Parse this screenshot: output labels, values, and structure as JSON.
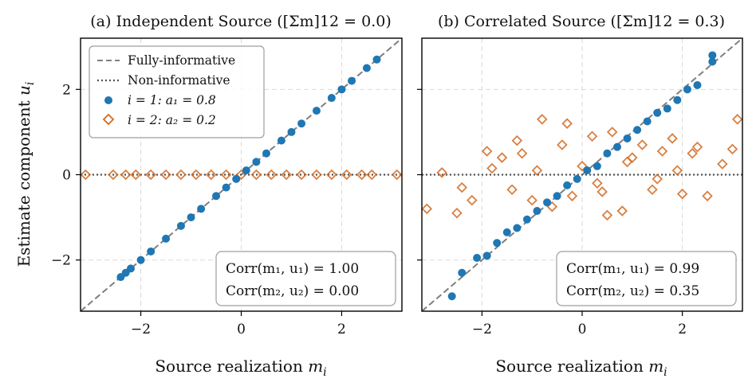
{
  "colors": {
    "blue": "#1f77b4",
    "orange": "#d2691e",
    "ref_line": "#7f7f7f",
    "dotted_line": "#555555",
    "grid": "#d9d9d9"
  },
  "shared": {
    "ylabel": "Estimate component u_i",
    "ylabel_main": "Estimate component ",
    "ylabel_sub": "i",
    "ylabel_var": "u",
    "xlabel_main": "Source realization ",
    "xlabel_var": "m",
    "xlabel_sub": "i",
    "yticks": [
      "2",
      "0",
      "−2"
    ]
  },
  "legend": {
    "items": [
      {
        "label": "Fully-informative",
        "marker": "dashed-line"
      },
      {
        "label": "Non-informative",
        "marker": "dotted-line"
      },
      {
        "label": "i = 1:  a₁ = 0.8",
        "marker": "blue-dot"
      },
      {
        "label": "i = 2:  a₂ = 0.2",
        "marker": "orange-diamond"
      }
    ]
  },
  "chart_data": [
    {
      "type": "scatter",
      "title": "(a) Independent Source ([Σm]12 = 0.0)",
      "xlabel": "Source realization m_i",
      "ylabel": "Estimate component u_i",
      "xlim": [
        -3.2,
        3.2
      ],
      "ylim": [
        -3.2,
        3.2
      ],
      "xticks": [
        -2,
        0,
        2
      ],
      "yticks": [
        -2,
        0,
        2
      ],
      "grid": true,
      "reference_lines": [
        {
          "name": "Fully-informative",
          "style": "dashed",
          "slope": 1,
          "intercept": 0
        },
        {
          "name": "Non-informative",
          "style": "dotted",
          "slope": 0,
          "intercept": 0
        }
      ],
      "series": [
        {
          "name": "i = 1: a1 = 0.8",
          "marker": "circle",
          "x": [
            -2.4,
            -2.3,
            -2.2,
            -2.0,
            -1.8,
            -1.5,
            -1.2,
            -1.0,
            -0.8,
            -0.5,
            -0.3,
            -0.1,
            0.1,
            0.3,
            0.5,
            0.8,
            1.0,
            1.2,
            1.5,
            1.8,
            2.0,
            2.2,
            2.5,
            2.7
          ],
          "y": [
            -2.4,
            -2.3,
            -2.2,
            -2.0,
            -1.8,
            -1.5,
            -1.2,
            -1.0,
            -0.8,
            -0.5,
            -0.3,
            -0.1,
            0.1,
            0.3,
            0.5,
            0.8,
            1.0,
            1.2,
            1.5,
            1.8,
            2.0,
            2.2,
            2.5,
            2.7
          ]
        },
        {
          "name": "i = 2: a2 = 0.2",
          "marker": "diamond-open",
          "x": [
            -3.1,
            -2.55,
            -2.3,
            -2.1,
            -1.8,
            -1.5,
            -1.2,
            -0.9,
            -0.6,
            -0.3,
            0.0,
            0.3,
            0.6,
            0.9,
            1.2,
            1.5,
            1.8,
            2.1,
            2.4,
            2.6,
            3.1
          ],
          "y": [
            0,
            0,
            0,
            0,
            0,
            0,
            0,
            0,
            0,
            0,
            0,
            0,
            0,
            0,
            0,
            0,
            0,
            0,
            0,
            0,
            0
          ]
        }
      ],
      "annotation": [
        "Corr(m₁, u₁) = 1.00",
        "Corr(m₂, u₂) = 0.00"
      ]
    },
    {
      "type": "scatter",
      "title": "(b) Correlated Source ([Σm]12 = 0.3)",
      "xlabel": "Source realization m_i",
      "xlim": [
        -3.2,
        3.2
      ],
      "ylim": [
        -3.2,
        3.2
      ],
      "xticks": [
        -2,
        0,
        2
      ],
      "grid": true,
      "reference_lines": [
        {
          "name": "Fully-informative",
          "style": "dashed",
          "slope": 1,
          "intercept": 0
        },
        {
          "name": "Non-informative",
          "style": "dotted",
          "slope": 0,
          "intercept": 0
        }
      ],
      "series": [
        {
          "name": "i = 1: a1 = 0.8",
          "marker": "circle",
          "x": [
            -2.6,
            -2.4,
            -2.1,
            -1.9,
            -1.7,
            -1.5,
            -1.3,
            -1.1,
            -0.9,
            -0.7,
            -0.5,
            -0.3,
            -0.1,
            0.1,
            0.3,
            0.5,
            0.7,
            0.9,
            1.1,
            1.3,
            1.5,
            1.7,
            1.9,
            2.1,
            2.3,
            2.6,
            2.6
          ],
          "y": [
            -2.85,
            -2.3,
            -1.95,
            -1.9,
            -1.6,
            -1.35,
            -1.25,
            -1.05,
            -0.85,
            -0.65,
            -0.5,
            -0.25,
            -0.1,
            0.1,
            0.2,
            0.5,
            0.65,
            0.85,
            1.05,
            1.25,
            1.45,
            1.55,
            1.75,
            2.0,
            2.1,
            2.65,
            2.8
          ]
        },
        {
          "name": "i = 2: a2 = 0.2",
          "marker": "diamond-open",
          "x": [
            -3.1,
            -2.8,
            -2.4,
            -2.2,
            -1.9,
            -1.6,
            -1.4,
            -1.2,
            -1.0,
            -0.8,
            -0.6,
            -0.4,
            -0.2,
            0.0,
            0.2,
            0.4,
            0.6,
            0.8,
            1.0,
            1.2,
            1.4,
            1.6,
            1.8,
            2.0,
            2.3,
            2.5,
            2.8,
            3.0,
            3.1,
            -1.8,
            -0.9,
            0.3,
            0.9,
            1.5,
            -2.5,
            -1.3,
            -0.3,
            0.5,
            2.2,
            1.9
          ],
          "y": [
            -0.8,
            0.05,
            -0.3,
            -0.6,
            0.55,
            0.4,
            -0.35,
            0.5,
            -0.6,
            1.3,
            -0.75,
            0.7,
            -0.5,
            0.2,
            0.9,
            -0.4,
            1.0,
            -0.85,
            0.4,
            0.7,
            -0.35,
            0.55,
            0.85,
            -0.45,
            0.65,
            -0.5,
            0.25,
            0.6,
            1.3,
            0.15,
            0.1,
            -0.2,
            0.3,
            -0.1,
            -0.9,
            0.8,
            1.2,
            -0.95,
            0.5,
            0.1
          ]
        }
      ],
      "annotation": [
        "Corr(m₁, u₁) = 0.99",
        "Corr(m₂, u₂) = 0.35"
      ]
    }
  ]
}
